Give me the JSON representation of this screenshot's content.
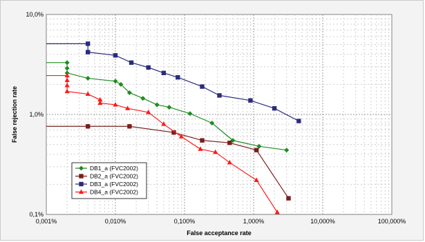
{
  "chart_data": {
    "type": "line",
    "xlabel": "False acceptance rate",
    "ylabel": "False rejection rate",
    "x_scale": "log",
    "y_scale": "log",
    "xlim": [
      0.001,
      100
    ],
    "ylim": [
      0.1,
      10
    ],
    "x_ticks": [
      {
        "value": 0.001,
        "label": "0,001%"
      },
      {
        "value": 0.01,
        "label": "0,010%"
      },
      {
        "value": 0.1,
        "label": "0,100%"
      },
      {
        "value": 1,
        "label": "1,000%"
      },
      {
        "value": 10,
        "label": "10,000%"
      },
      {
        "value": 100,
        "label": "100,000%"
      }
    ],
    "y_ticks": [
      {
        "value": 0.1,
        "label": "0,1%"
      },
      {
        "value": 1,
        "label": "1,0%"
      },
      {
        "value": 10,
        "label": "10,0%"
      }
    ],
    "grid": true,
    "legend_position": "lower-left",
    "series": [
      {
        "name": "DB1_a (FVC2002)",
        "color": "#1f8c1f",
        "marker": "diamond",
        "start_flat_y": 3.3,
        "points": [
          [
            0.002,
            3.3
          ],
          [
            0.002,
            2.9
          ],
          [
            0.002,
            2.6
          ],
          [
            0.004,
            2.3
          ],
          [
            0.01,
            2.15
          ],
          [
            0.012,
            2.0
          ],
          [
            0.016,
            1.65
          ],
          [
            0.025,
            1.45
          ],
          [
            0.04,
            1.25
          ],
          [
            0.06,
            1.18
          ],
          [
            0.12,
            1.02
          ],
          [
            0.25,
            0.82
          ],
          [
            0.5,
            0.55
          ],
          [
            1.2,
            0.48
          ],
          [
            3,
            0.44
          ]
        ]
      },
      {
        "name": "DB2_a (FVC2002)",
        "color": "#7a1e1e",
        "marker": "square",
        "start_flat_y": 0.76,
        "points": [
          [
            0.004,
            0.76
          ],
          [
            0.016,
            0.76
          ],
          [
            0.07,
            0.66
          ],
          [
            0.18,
            0.55
          ],
          [
            0.45,
            0.52
          ],
          [
            1.1,
            0.44
          ],
          [
            3.2,
            0.145
          ]
        ]
      },
      {
        "name": "DB3_a (FVC2002)",
        "color": "#2b2b7e",
        "marker": "square",
        "start_flat_y": 5.1,
        "points": [
          [
            0.004,
            5.1
          ],
          [
            0.004,
            4.2
          ],
          [
            0.01,
            3.9
          ],
          [
            0.017,
            3.3
          ],
          [
            0.03,
            2.95
          ],
          [
            0.05,
            2.6
          ],
          [
            0.08,
            2.35
          ],
          [
            0.18,
            1.9
          ],
          [
            0.32,
            1.55
          ],
          [
            0.9,
            1.38
          ],
          [
            2,
            1.15
          ],
          [
            4.5,
            0.86
          ]
        ]
      },
      {
        "name": "DB4_a (FVC2002)",
        "color": "#ff1a1a",
        "marker": "triangle",
        "start_flat_y": 2.45,
        "points": [
          [
            0.002,
            2.45
          ],
          [
            0.002,
            2.2
          ],
          [
            0.002,
            1.95
          ],
          [
            0.002,
            1.7
          ],
          [
            0.004,
            1.6
          ],
          [
            0.006,
            1.4
          ],
          [
            0.006,
            1.3
          ],
          [
            0.01,
            1.25
          ],
          [
            0.015,
            1.15
          ],
          [
            0.03,
            1.05
          ],
          [
            0.05,
            0.8
          ],
          [
            0.09,
            0.6
          ],
          [
            0.17,
            0.45
          ],
          [
            0.28,
            0.42
          ],
          [
            0.45,
            0.33
          ],
          [
            1.1,
            0.22
          ],
          [
            2.2,
            0.105
          ]
        ]
      }
    ]
  }
}
